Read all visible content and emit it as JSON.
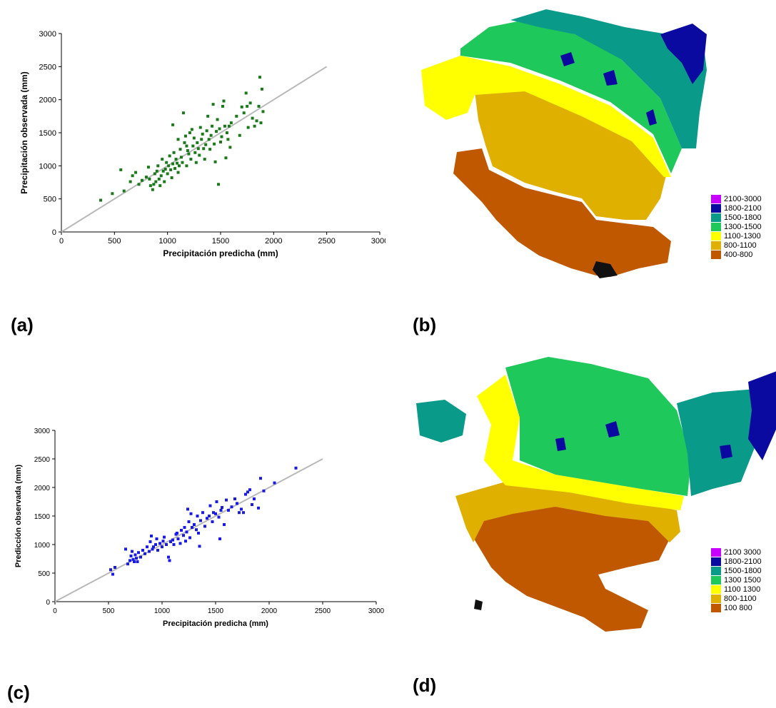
{
  "panels": {
    "a": "(a)",
    "b": "(b)",
    "c": "(c)",
    "d": "(d)"
  },
  "chart_data": [
    {
      "type": "scatter",
      "id": "a",
      "title": "",
      "xlabel": "Precipitación predicha (mm)",
      "ylabel": "Precipitación observada (mm)",
      "xlim": [
        0,
        3000
      ],
      "ylim": [
        0,
        3000
      ],
      "xticks": [
        0,
        500,
        1000,
        1500,
        2000,
        2500,
        3000
      ],
      "yticks": [
        0,
        500,
        1000,
        1500,
        2000,
        2500,
        3000
      ],
      "grid": false,
      "point_color": "#1a7a1a",
      "reference_line": {
        "x": [
          0,
          2500
        ],
        "y": [
          0,
          2500
        ],
        "color": "#b8b8b8"
      },
      "points": [
        [
          370,
          480
        ],
        [
          480,
          580
        ],
        [
          560,
          940
        ],
        [
          590,
          620
        ],
        [
          650,
          760
        ],
        [
          670,
          850
        ],
        [
          700,
          900
        ],
        [
          730,
          720
        ],
        [
          760,
          780
        ],
        [
          800,
          830
        ],
        [
          820,
          980
        ],
        [
          830,
          800
        ],
        [
          840,
          700
        ],
        [
          860,
          640
        ],
        [
          870,
          720
        ],
        [
          880,
          880
        ],
        [
          890,
          760
        ],
        [
          900,
          920
        ],
        [
          910,
          1000
        ],
        [
          920,
          800
        ],
        [
          930,
          700
        ],
        [
          940,
          850
        ],
        [
          950,
          1100
        ],
        [
          960,
          920
        ],
        [
          970,
          760
        ],
        [
          980,
          950
        ],
        [
          990,
          1050
        ],
        [
          1000,
          880
        ],
        [
          1010,
          1000
        ],
        [
          1020,
          1150
        ],
        [
          1030,
          940
        ],
        [
          1040,
          820
        ],
        [
          1050,
          1030
        ],
        [
          1060,
          1200
        ],
        [
          1070,
          960
        ],
        [
          1080,
          1100
        ],
        [
          1090,
          1040
        ],
        [
          1100,
          900
        ],
        [
          1110,
          1000
        ],
        [
          1120,
          1250
        ],
        [
          1130,
          1130
        ],
        [
          1140,
          1050
        ],
        [
          1150,
          1800
        ],
        [
          1160,
          1350
        ],
        [
          1170,
          1450
        ],
        [
          1180,
          1000
        ],
        [
          1190,
          1230
        ],
        [
          1200,
          1180
        ],
        [
          1210,
          1500
        ],
        [
          1220,
          1100
        ],
        [
          1230,
          1550
        ],
        [
          1240,
          1300
        ],
        [
          1250,
          1420
        ],
        [
          1260,
          1200
        ],
        [
          1270,
          1050
        ],
        [
          1280,
          1350
        ],
        [
          1290,
          1260
        ],
        [
          1300,
          1160
        ],
        [
          1310,
          1580
        ],
        [
          1320,
          1400
        ],
        [
          1330,
          1480
        ],
        [
          1340,
          1260
        ],
        [
          1350,
          1100
        ],
        [
          1360,
          1320
        ],
        [
          1370,
          1530
        ],
        [
          1380,
          1750
        ],
        [
          1390,
          1400
        ],
        [
          1400,
          1250
        ],
        [
          1410,
          1460
        ],
        [
          1420,
          1600
        ],
        [
          1430,
          1930
        ],
        [
          1440,
          1330
        ],
        [
          1450,
          1060
        ],
        [
          1460,
          1520
        ],
        [
          1470,
          1700
        ],
        [
          1480,
          720
        ],
        [
          1490,
          1560
        ],
        [
          1500,
          1360
        ],
        [
          1510,
          1440
        ],
        [
          1520,
          1900
        ],
        [
          1530,
          1980
        ],
        [
          1540,
          1600
        ],
        [
          1550,
          1120
        ],
        [
          1560,
          1500
        ],
        [
          1570,
          1400
        ],
        [
          1580,
          1600
        ],
        [
          1590,
          1280
        ],
        [
          1600,
          1650
        ],
        [
          1650,
          1750
        ],
        [
          1680,
          1460
        ],
        [
          1700,
          1890
        ],
        [
          1720,
          1800
        ],
        [
          1740,
          2100
        ],
        [
          1750,
          1900
        ],
        [
          1760,
          1580
        ],
        [
          1780,
          1950
        ],
        [
          1800,
          1720
        ],
        [
          1820,
          1600
        ],
        [
          1840,
          1680
        ],
        [
          1860,
          1900
        ],
        [
          1870,
          2340
        ],
        [
          1880,
          1650
        ],
        [
          1890,
          2160
        ],
        [
          1900,
          1820
        ],
        [
          1050,
          1620
        ],
        [
          1100,
          1400
        ],
        [
          1180,
          1300
        ]
      ]
    },
    {
      "type": "scatter",
      "id": "c",
      "title": "",
      "xlabel": "Precipitación predicha (mm)",
      "ylabel": "Predicción observada (mm)",
      "xlim": [
        0,
        3000
      ],
      "ylim": [
        0,
        3000
      ],
      "xticks": [
        0,
        500,
        1000,
        1500,
        2000,
        2500,
        3000
      ],
      "yticks": [
        0,
        500,
        1000,
        1500,
        2000,
        2500,
        3000
      ],
      "grid": false,
      "point_color": "#1a1ae6",
      "reference_line": {
        "x": [
          0,
          2500
        ],
        "y": [
          0,
          2500
        ],
        "color": "#b8b8b8"
      },
      "points": [
        [
          520,
          560
        ],
        [
          540,
          480
        ],
        [
          560,
          600
        ],
        [
          660,
          920
        ],
        [
          680,
          660
        ],
        [
          700,
          720
        ],
        [
          710,
          800
        ],
        [
          720,
          880
        ],
        [
          730,
          740
        ],
        [
          740,
          700
        ],
        [
          750,
          820
        ],
        [
          760,
          760
        ],
        [
          770,
          700
        ],
        [
          780,
          860
        ],
        [
          800,
          780
        ],
        [
          820,
          900
        ],
        [
          840,
          840
        ],
        [
          860,
          960
        ],
        [
          880,
          880
        ],
        [
          890,
          1050
        ],
        [
          900,
          1150
        ],
        [
          910,
          920
        ],
        [
          920,
          960
        ],
        [
          940,
          1000
        ],
        [
          950,
          1100
        ],
        [
          960,
          900
        ],
        [
          980,
          1020
        ],
        [
          1000,
          960
        ],
        [
          1010,
          1060
        ],
        [
          1020,
          1130
        ],
        [
          1040,
          1000
        ],
        [
          1060,
          780
        ],
        [
          1070,
          720
        ],
        [
          1080,
          1050
        ],
        [
          1100,
          1080
        ],
        [
          1110,
          1000
        ],
        [
          1130,
          1180
        ],
        [
          1150,
          1100
        ],
        [
          1180,
          1250
        ],
        [
          1200,
          1160
        ],
        [
          1210,
          1300
        ],
        [
          1220,
          1060
        ],
        [
          1230,
          1220
        ],
        [
          1240,
          1620
        ],
        [
          1250,
          1400
        ],
        [
          1260,
          1120
        ],
        [
          1270,
          1540
        ],
        [
          1280,
          1300
        ],
        [
          1300,
          1350
        ],
        [
          1320,
          1260
        ],
        [
          1340,
          1200
        ],
        [
          1350,
          970
        ],
        [
          1360,
          1420
        ],
        [
          1380,
          1560
        ],
        [
          1400,
          1320
        ],
        [
          1420,
          1460
        ],
        [
          1440,
          1500
        ],
        [
          1450,
          1680
        ],
        [
          1470,
          1400
        ],
        [
          1480,
          1560
        ],
        [
          1500,
          1540
        ],
        [
          1510,
          1750
        ],
        [
          1530,
          1480
        ],
        [
          1540,
          1100
        ],
        [
          1550,
          1600
        ],
        [
          1560,
          1650
        ],
        [
          1580,
          1350
        ],
        [
          1600,
          1780
        ],
        [
          1620,
          1600
        ],
        [
          1650,
          1660
        ],
        [
          1680,
          1800
        ],
        [
          1700,
          1720
        ],
        [
          1720,
          1560
        ],
        [
          1740,
          1620
        ],
        [
          1760,
          1560
        ],
        [
          1780,
          1880
        ],
        [
          1800,
          1920
        ],
        [
          1820,
          1960
        ],
        [
          1840,
          1700
        ],
        [
          1860,
          1800
        ],
        [
          1900,
          1640
        ],
        [
          1920,
          2160
        ],
        [
          1950,
          1940
        ],
        [
          2050,
          2080
        ],
        [
          2250,
          2340
        ],
        [
          1140,
          1200
        ],
        [
          1330,
          1500
        ],
        [
          1170,
          1020
        ]
      ]
    }
  ],
  "maps": {
    "b": {
      "legend": [
        {
          "label": "2100-3000",
          "color": "#c800ff"
        },
        {
          "label": "1800-2100",
          "color": "#0a0aa0"
        },
        {
          "label": "1500-1800",
          "color": "#0a9a8a"
        },
        {
          "label": "1300-1500",
          "color": "#1ec85a"
        },
        {
          "label": "1100-1300",
          "color": "#ffff00"
        },
        {
          "label": "800-1100",
          "color": "#e0b000"
        },
        {
          "label": "400-800",
          "color": "#c05800"
        }
      ]
    },
    "d": {
      "legend": [
        {
          "label": "2100 3000",
          "color": "#c800ff"
        },
        {
          "label": "1800-2100",
          "color": "#0a0aa0"
        },
        {
          "label": "1500-1800",
          "color": "#0a9a8a"
        },
        {
          "label": "1300 1500",
          "color": "#1ec85a"
        },
        {
          "label": "1100 1300",
          "color": "#ffff00"
        },
        {
          "label": "800-1100",
          "color": "#e0b000"
        },
        {
          "label": "100 800",
          "color": "#c05800"
        }
      ]
    }
  }
}
